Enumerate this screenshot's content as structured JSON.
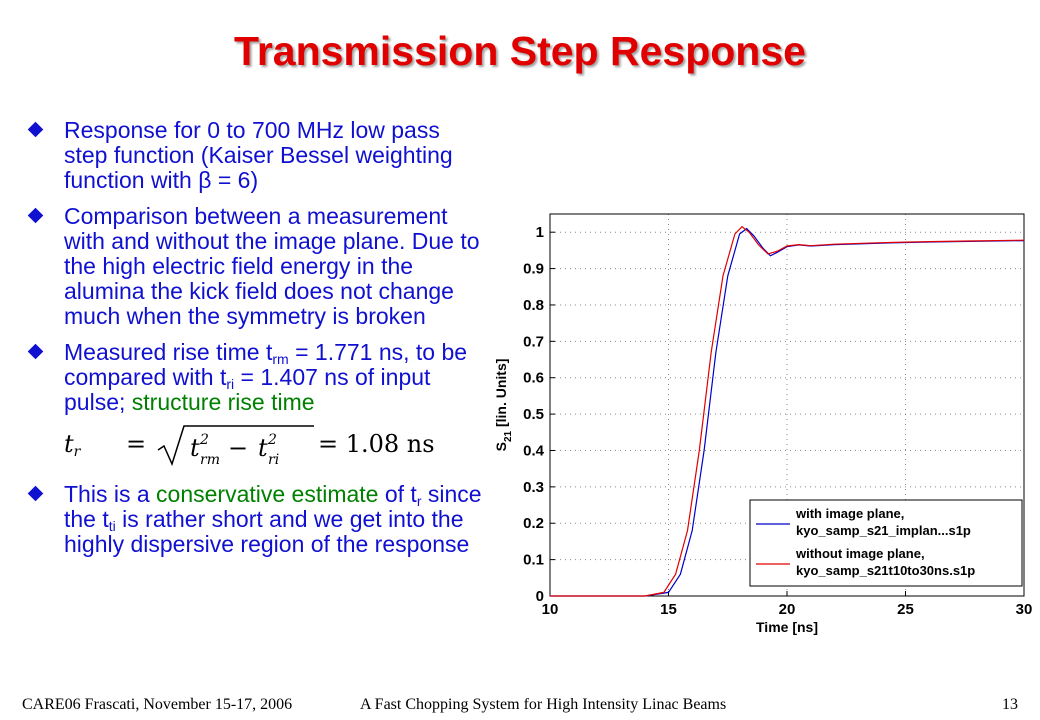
{
  "slide": {
    "title": "Transmission Step Response"
  },
  "bullets": {
    "b1": "Response for 0 to 700 MHz low pass step function (Kaiser Bessel weighting function with β = 6)",
    "b2": "Comparison between a measurement with and without the image plane. Due to the high electric field energy in the alumina the kick field does not change much when the symmetry is broken",
    "b3": {
      "p1": "Measured rise time t",
      "s1": "rm",
      "p2": " = 1.771 ns, to be compared with t",
      "s2": "ri",
      "p3": " = 1.407 ns of input pulse; ",
      "green": "structure rise time"
    },
    "formula": {
      "lhs": "t",
      "lhs_sub": "r",
      "eq": "=",
      "rhs": "= 1.08 ns"
    },
    "b4": {
      "p1": "This is a ",
      "green": "conservative estimate",
      "p2": " of t",
      "s1": "r",
      "p3": " since the t",
      "s2": "ti",
      "p4": " is rather short and we get into the highly dispersive region of the response"
    }
  },
  "chart_data": {
    "type": "line",
    "xlabel": "Time [ns]",
    "ylabel": "S21 [lin. Units]",
    "ylabel_main": "S",
    "ylabel_sub": "21",
    "ylabel_rest": " [lin. Units]",
    "xlim": [
      10,
      30
    ],
    "ylim": [
      0,
      1.05
    ],
    "xticks": [
      10,
      15,
      20,
      25,
      30
    ],
    "yticks": [
      0,
      0.1,
      0.2,
      0.3,
      0.4,
      0.5,
      0.6,
      0.7,
      0.8,
      0.9,
      1
    ],
    "grid": true,
    "legend_position": "bottom-right",
    "series": [
      {
        "name": "with image plane, kyo_samp_s21_implan...s1p",
        "legend_line1": "with image plane,",
        "legend_line2": "kyo_samp_s21_implan...s1p",
        "color": "#0000cc",
        "x": [
          10,
          12,
          14,
          15,
          15.5,
          16,
          16.5,
          17,
          17.5,
          18,
          18.3,
          18.6,
          19,
          19.3,
          19.6,
          20,
          20.5,
          21,
          22,
          24,
          26,
          28,
          30
        ],
        "y": [
          0,
          0,
          0,
          0.01,
          0.06,
          0.18,
          0.4,
          0.67,
          0.88,
          0.995,
          1.01,
          0.99,
          0.955,
          0.935,
          0.945,
          0.96,
          0.965,
          0.962,
          0.966,
          0.97,
          0.973,
          0.975,
          0.977
        ]
      },
      {
        "name": "without image plane, kyo_samp_s21t10to30ns.s1p",
        "legend_line1": "without image plane,",
        "legend_line2": "kyo_samp_s21t10to30ns.s1p",
        "color": "#e00000",
        "x": [
          10,
          12,
          14,
          14.8,
          15.3,
          15.8,
          16.3,
          16.8,
          17.3,
          17.8,
          18.1,
          18.4,
          18.8,
          19.2,
          19.6,
          20,
          20.5,
          21,
          22,
          24,
          26,
          28,
          30
        ],
        "y": [
          0,
          0,
          0,
          0.01,
          0.06,
          0.18,
          0.4,
          0.67,
          0.88,
          0.995,
          1.015,
          1.0,
          0.965,
          0.94,
          0.948,
          0.962,
          0.966,
          0.963,
          0.967,
          0.971,
          0.974,
          0.976,
          0.978
        ]
      }
    ]
  },
  "footer": {
    "left": "CARE06 Frascati, November 15-17, 2006",
    "center": "A Fast Chopping System for High Intensity Linac Beams",
    "page": "13"
  }
}
